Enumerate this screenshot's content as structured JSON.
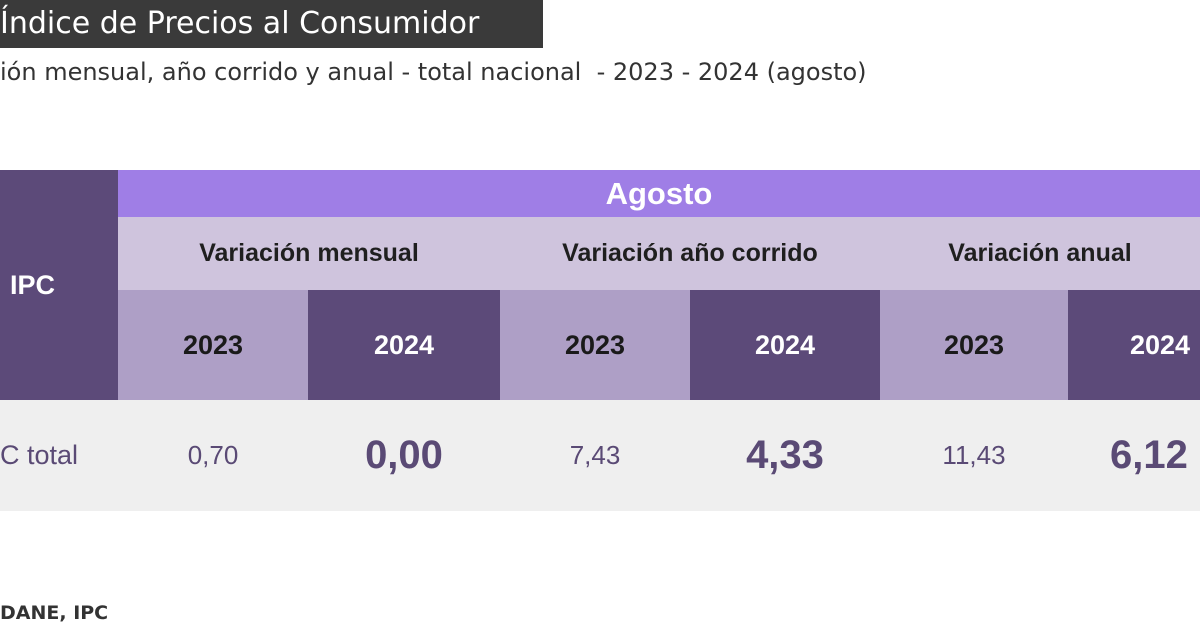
{
  "title": "Índice de Precios al Consumidor",
  "subtitle": "ión mensual, año corrido y anual - total nacional  - 2023 - 2024 (agosto)",
  "source": "DANE, IPC",
  "colors": {
    "dark_purple": "#5c4a79",
    "accent_purple": "#9f7ee6",
    "light_lavender": "#cfc4dd",
    "mid_lavender": "#ae9fc6",
    "row_bg": "#efefef",
    "value_text": "#5a4a75"
  },
  "chart_data": {
    "type": "table",
    "row_header": "IPC",
    "month": "Agosto",
    "groups": [
      {
        "label": "Variación mensual",
        "years": [
          "2023",
          "2024"
        ]
      },
      {
        "label": "Variación año corrido",
        "years": [
          "2023",
          "2024"
        ]
      },
      {
        "label": "Variación anual",
        "years": [
          "2023",
          "2024"
        ]
      }
    ],
    "rows": [
      {
        "label": "C total",
        "values": [
          "0,70",
          "0,00",
          "7,43",
          "4,33",
          "11,43",
          "6,12"
        ]
      }
    ]
  }
}
